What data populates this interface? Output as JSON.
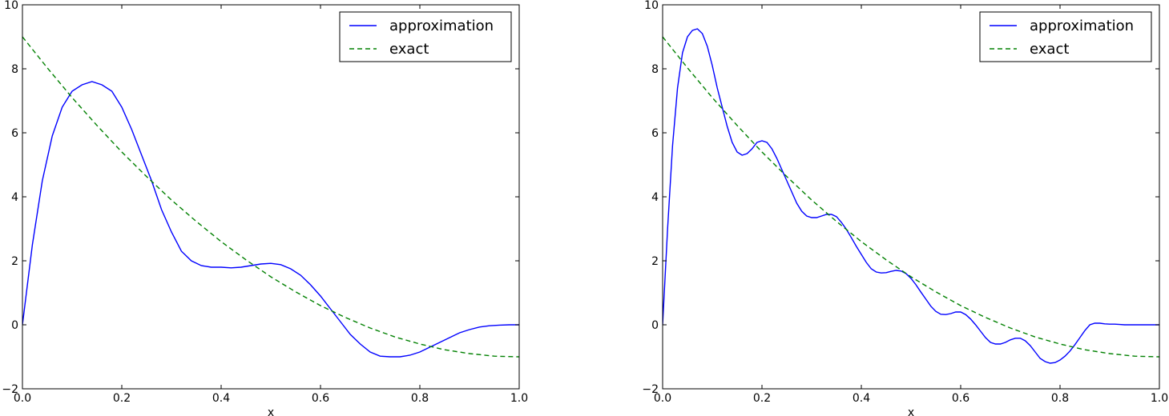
{
  "chart_data": [
    {
      "type": "line",
      "xlabel": "x",
      "ylabel": "",
      "xlim": [
        0.0,
        1.0
      ],
      "ylim": [
        -2,
        10
      ],
      "xticks": [
        "0.0",
        "0.2",
        "0.4",
        "0.6",
        "0.8",
        "1.0"
      ],
      "yticks": [
        "−2",
        "0",
        "2",
        "4",
        "6",
        "8",
        "10"
      ],
      "legend_position": "top-right",
      "series": [
        {
          "name": "approximation",
          "color": "#0000ff",
          "style": "solid",
          "x": [
            0.0,
            0.02,
            0.04,
            0.06,
            0.08,
            0.1,
            0.12,
            0.14,
            0.16,
            0.18,
            0.2,
            0.22,
            0.24,
            0.26,
            0.28,
            0.3,
            0.32,
            0.34,
            0.36,
            0.38,
            0.4,
            0.42,
            0.44,
            0.46,
            0.48,
            0.5,
            0.52,
            0.54,
            0.56,
            0.58,
            0.6,
            0.62,
            0.64,
            0.66,
            0.68,
            0.7,
            0.72,
            0.74,
            0.76,
            0.78,
            0.8,
            0.82,
            0.84,
            0.86,
            0.88,
            0.9,
            0.92,
            0.94,
            0.96,
            0.98,
            1.0
          ],
          "y": [
            0.0,
            2.5,
            4.5,
            5.9,
            6.8,
            7.3,
            7.5,
            7.6,
            7.5,
            7.3,
            6.8,
            6.1,
            5.3,
            4.5,
            3.6,
            2.9,
            2.3,
            2.0,
            1.85,
            1.8,
            1.8,
            1.78,
            1.8,
            1.85,
            1.9,
            1.92,
            1.88,
            1.75,
            1.55,
            1.25,
            0.9,
            0.5,
            0.1,
            -0.3,
            -0.6,
            -0.85,
            -0.98,
            -1.0,
            -1.0,
            -0.95,
            -0.85,
            -0.7,
            -0.55,
            -0.4,
            -0.25,
            -0.15,
            -0.07,
            -0.03,
            -0.01,
            0.0,
            0.0
          ]
        },
        {
          "name": "exact",
          "color": "#008000",
          "style": "dashed",
          "x": [
            0.0,
            0.05,
            0.1,
            0.15,
            0.2,
            0.25,
            0.3,
            0.35,
            0.4,
            0.45,
            0.5,
            0.55,
            0.6,
            0.65,
            0.7,
            0.75,
            0.8,
            0.85,
            0.9,
            0.95,
            1.0
          ],
          "y": [
            9.0,
            8.03,
            7.1,
            6.23,
            5.4,
            4.63,
            3.9,
            3.23,
            2.6,
            2.03,
            1.5,
            1.03,
            0.6,
            0.23,
            -0.1,
            -0.38,
            -0.6,
            -0.78,
            -0.9,
            -0.98,
            -1.0
          ]
        }
      ]
    },
    {
      "type": "line",
      "xlabel": "x",
      "ylabel": "",
      "xlim": [
        0.0,
        1.0
      ],
      "ylim": [
        -2,
        10
      ],
      "xticks": [
        "0.0",
        "0.2",
        "0.4",
        "0.6",
        "0.8",
        "1.0"
      ],
      "yticks": [
        "−2",
        "0",
        "2",
        "4",
        "6",
        "8",
        "10"
      ],
      "legend_position": "top-right",
      "series": [
        {
          "name": "approximation",
          "color": "#0000ff",
          "style": "solid",
          "x": [
            0.0,
            0.01,
            0.02,
            0.03,
            0.04,
            0.05,
            0.06,
            0.07,
            0.08,
            0.09,
            0.1,
            0.11,
            0.12,
            0.13,
            0.14,
            0.15,
            0.16,
            0.17,
            0.18,
            0.19,
            0.2,
            0.21,
            0.22,
            0.23,
            0.24,
            0.25,
            0.26,
            0.27,
            0.28,
            0.29,
            0.3,
            0.31,
            0.32,
            0.33,
            0.34,
            0.35,
            0.36,
            0.37,
            0.38,
            0.39,
            0.4,
            0.41,
            0.42,
            0.43,
            0.44,
            0.45,
            0.46,
            0.47,
            0.48,
            0.49,
            0.5,
            0.51,
            0.52,
            0.53,
            0.54,
            0.55,
            0.56,
            0.57,
            0.58,
            0.59,
            0.6,
            0.61,
            0.62,
            0.63,
            0.64,
            0.65,
            0.66,
            0.67,
            0.68,
            0.69,
            0.7,
            0.71,
            0.72,
            0.73,
            0.74,
            0.75,
            0.76,
            0.77,
            0.78,
            0.79,
            0.8,
            0.81,
            0.82,
            0.83,
            0.84,
            0.85,
            0.86,
            0.87,
            0.88,
            0.89,
            0.9,
            0.91,
            0.92,
            0.93,
            0.94,
            0.95,
            0.96,
            0.97,
            0.98,
            0.99,
            1.0
          ],
          "y": [
            0.0,
            3.0,
            5.6,
            7.4,
            8.5,
            9.0,
            9.2,
            9.25,
            9.1,
            8.7,
            8.1,
            7.4,
            6.8,
            6.2,
            5.7,
            5.4,
            5.3,
            5.35,
            5.5,
            5.7,
            5.75,
            5.7,
            5.5,
            5.2,
            4.85,
            4.5,
            4.15,
            3.8,
            3.55,
            3.4,
            3.35,
            3.35,
            3.4,
            3.45,
            3.45,
            3.38,
            3.2,
            2.98,
            2.72,
            2.45,
            2.2,
            1.95,
            1.75,
            1.65,
            1.62,
            1.63,
            1.67,
            1.7,
            1.68,
            1.6,
            1.45,
            1.25,
            1.02,
            0.8,
            0.58,
            0.42,
            0.33,
            0.32,
            0.35,
            0.4,
            0.4,
            0.32,
            0.18,
            0.0,
            -0.2,
            -0.4,
            -0.55,
            -0.6,
            -0.6,
            -0.55,
            -0.47,
            -0.42,
            -0.42,
            -0.5,
            -0.65,
            -0.85,
            -1.05,
            -1.15,
            -1.2,
            -1.18,
            -1.1,
            -0.98,
            -0.82,
            -0.62,
            -0.4,
            -0.18,
            0.0,
            0.05,
            0.05,
            0.03,
            0.02,
            0.02,
            0.01,
            0.0,
            0.0,
            0.0,
            0.0,
            0.0,
            0.0,
            0.0,
            0.0
          ]
        },
        {
          "name": "exact",
          "color": "#008000",
          "style": "dashed",
          "x": [
            0.0,
            0.05,
            0.1,
            0.15,
            0.2,
            0.25,
            0.3,
            0.35,
            0.4,
            0.45,
            0.5,
            0.55,
            0.6,
            0.65,
            0.7,
            0.75,
            0.8,
            0.85,
            0.9,
            0.95,
            1.0
          ],
          "y": [
            9.0,
            8.03,
            7.1,
            6.23,
            5.4,
            4.63,
            3.9,
            3.23,
            2.6,
            2.03,
            1.5,
            1.03,
            0.6,
            0.23,
            -0.1,
            -0.38,
            -0.6,
            -0.78,
            -0.9,
            -0.98,
            -1.0
          ]
        }
      ]
    }
  ]
}
